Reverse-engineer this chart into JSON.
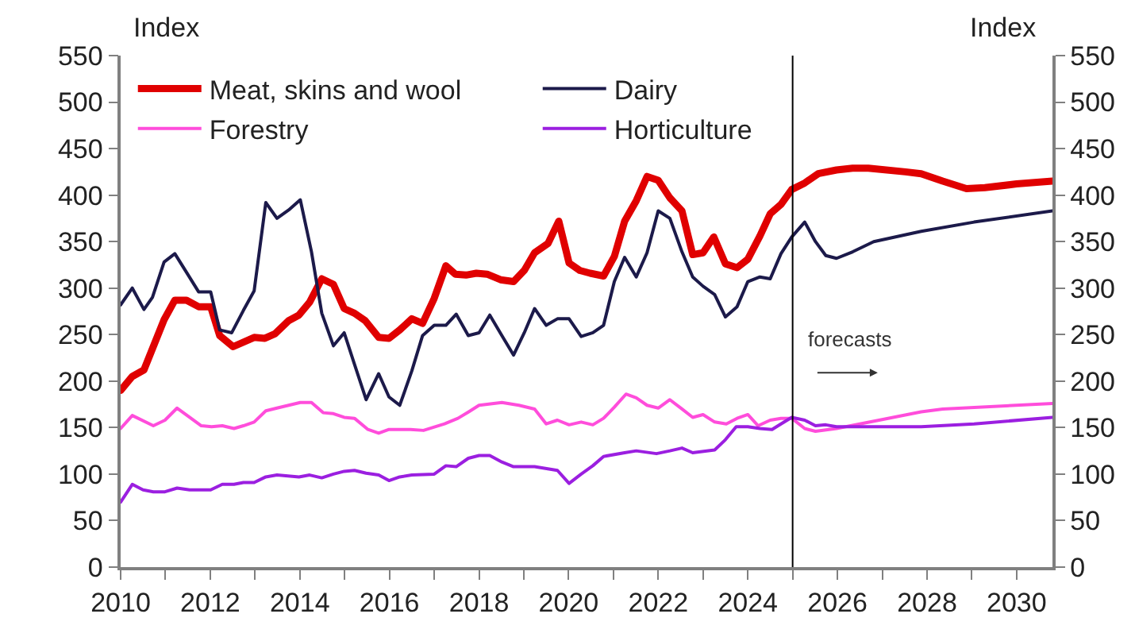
{
  "chart_data": {
    "type": "line",
    "ylabel": "Index",
    "y2label": "Index",
    "xlim": [
      2010,
      2030.8
    ],
    "xticks": [
      2010,
      {
        "value": 2011,
        "label": null
      },
      2012,
      {
        "value": 2013,
        "label": null
      },
      2014,
      {
        "value": 2015,
        "label": null
      },
      2016,
      {
        "value": 2017,
        "label": null
      },
      2018,
      {
        "value": 2019,
        "label": null
      },
      2020,
      {
        "value": 2021,
        "label": null
      },
      2022,
      {
        "value": 2023,
        "label": null
      },
      2024,
      {
        "value": 2025,
        "label": null
      },
      2026,
      {
        "value": 2027,
        "label": null
      },
      2028,
      {
        "value": 2029,
        "label": null
      },
      2030
    ],
    "ylim": [
      0,
      550
    ],
    "yticks": [
      0,
      50,
      100,
      150,
      200,
      250,
      300,
      350,
      400,
      450,
      500,
      550
    ],
    "y2lim": [
      0,
      550
    ],
    "y2ticks": [
      0,
      50,
      100,
      150,
      200,
      250,
      300,
      350,
      400,
      450,
      500,
      550
    ],
    "legend": "top left",
    "marker": "none",
    "line_style": "solid",
    "ref_lines": [
      {
        "axis": "x",
        "value": 2025,
        "label": "forecasts",
        "color": "#000000"
      }
    ],
    "series": [
      {
        "name": "Meat, skins and wool",
        "color": "#e00000",
        "x": [
          2010.0,
          2010.26,
          2010.52,
          2010.97,
          2011.21,
          2011.47,
          2011.74,
          2012.01,
          2012.21,
          2012.51,
          2012.98,
          2013.22,
          2013.45,
          2013.75,
          2013.98,
          2014.22,
          2014.49,
          2014.75,
          2014.99,
          2015.22,
          2015.46,
          2015.76,
          2015.99,
          2016.23,
          2016.5,
          2016.74,
          2017.0,
          2017.26,
          2017.47,
          2017.71,
          2017.94,
          2018.18,
          2018.48,
          2018.77,
          2019.01,
          2019.24,
          2019.54,
          2019.78,
          2020.01,
          2020.25,
          2020.48,
          2020.78,
          2021.02,
          2021.25,
          2021.51,
          2021.75,
          2022.0,
          2022.26,
          2022.53,
          2022.77,
          2023.0,
          2023.24,
          2023.5,
          2023.76,
          2024.0,
          2024.27,
          2024.5,
          2024.74,
          2024.98,
          2025.27,
          2025.57,
          2025.98,
          2026.34,
          2026.69,
          2027.52,
          2027.87,
          2028.35,
          2028.88,
          2029.29,
          2030.0,
          2030.8
        ],
        "values": [
          190,
          205,
          212,
          266,
          287,
          287,
          280,
          280,
          249,
          237,
          247,
          246,
          251,
          265,
          271,
          285,
          310,
          304,
          278,
          273,
          265,
          247,
          246,
          255,
          267,
          262,
          289,
          324,
          315,
          314,
          316,
          315,
          309,
          307,
          319,
          338,
          348,
          372,
          327,
          319,
          316,
          313,
          334,
          372,
          394,
          420,
          416,
          397,
          383,
          336,
          338,
          355,
          326,
          322,
          331,
          356,
          380,
          390,
          406,
          413,
          423,
          427,
          429,
          429,
          425,
          423,
          415,
          407,
          408,
          412,
          415
        ]
      },
      {
        "name": "Dairy",
        "color": "#1c1a4a",
        "x": [
          2010.0,
          2010.26,
          2010.52,
          2010.71,
          2010.97,
          2011.21,
          2011.47,
          2011.74,
          2012.01,
          2012.21,
          2012.48,
          2012.74,
          2012.98,
          2013.24,
          2013.49,
          2013.75,
          2014.01,
          2014.26,
          2014.49,
          2014.75,
          2014.99,
          2015.22,
          2015.48,
          2015.76,
          2015.99,
          2016.23,
          2016.5,
          2016.74,
          2017.0,
          2017.26,
          2017.49,
          2017.76,
          2018.0,
          2018.24,
          2018.51,
          2018.77,
          2019.01,
          2019.24,
          2019.5,
          2019.75,
          2020.01,
          2020.28,
          2020.54,
          2020.78,
          2021.02,
          2021.25,
          2021.51,
          2021.75,
          2022.0,
          2022.26,
          2022.53,
          2022.77,
          2023.0,
          2023.26,
          2023.5,
          2023.76,
          2024.0,
          2024.27,
          2024.5,
          2024.74,
          2024.98,
          2025.27,
          2025.51,
          2025.74,
          2025.98,
          2026.34,
          2026.81,
          2027.87,
          2029.05,
          2030.8
        ],
        "values": [
          282,
          300,
          277,
          290,
          328,
          337,
          317,
          296,
          296,
          255,
          252,
          276,
          297,
          392,
          375,
          384,
          395,
          339,
          273,
          238,
          252,
          218,
          180,
          208,
          183,
          174,
          211,
          249,
          260,
          260,
          272,
          249,
          252,
          271,
          249,
          228,
          252,
          278,
          260,
          267,
          267,
          248,
          252,
          260,
          307,
          333,
          312,
          338,
          383,
          375,
          339,
          312,
          302,
          293,
          269,
          280,
          307,
          312,
          310,
          337,
          355,
          371,
          350,
          335,
          332,
          339,
          350,
          361,
          371,
          383
        ]
      },
      {
        "name": "Forestry",
        "color": "#ff4ddb",
        "x": [
          2010.0,
          2010.26,
          2010.73,
          2010.99,
          2011.26,
          2011.54,
          2011.8,
          2012.03,
          2012.27,
          2012.53,
          2012.74,
          2012.98,
          2013.24,
          2013.49,
          2013.75,
          2014.01,
          2014.26,
          2014.52,
          2014.75,
          2014.99,
          2015.22,
          2015.52,
          2015.76,
          2015.99,
          2016.47,
          2016.76,
          2017.23,
          2017.53,
          2017.77,
          2018.0,
          2018.51,
          2018.89,
          2019.24,
          2019.5,
          2019.75,
          2020.01,
          2020.28,
          2020.54,
          2020.78,
          2021.02,
          2021.28,
          2021.51,
          2021.75,
          2022.0,
          2022.26,
          2022.53,
          2022.77,
          2023.0,
          2023.26,
          2023.52,
          2023.76,
          2024.0,
          2024.23,
          2024.5,
          2024.74,
          2024.98,
          2025.27,
          2025.51,
          2025.98,
          2026.93,
          2027.87,
          2028.35,
          2030.8
        ],
        "values": [
          149,
          163,
          152,
          158,
          171,
          161,
          152,
          151,
          152,
          149,
          152,
          156,
          168,
          171,
          174,
          177,
          177,
          166,
          165,
          161,
          160,
          148,
          144,
          148,
          148,
          147,
          154,
          160,
          167,
          174,
          177,
          174,
          170,
          154,
          158,
          153,
          156,
          153,
          160,
          172,
          186,
          182,
          174,
          171,
          180,
          170,
          161,
          164,
          156,
          154,
          160,
          164,
          152,
          158,
          160,
          160,
          149,
          146,
          149,
          158,
          167,
          170,
          176
        ]
      },
      {
        "name": "Horticulture",
        "color": "#9b1fe0",
        "x": [
          2010.0,
          2010.26,
          2010.5,
          2010.73,
          2010.99,
          2011.26,
          2011.54,
          2012.01,
          2012.27,
          2012.53,
          2012.74,
          2012.98,
          2013.24,
          2013.49,
          2013.98,
          2014.22,
          2014.49,
          2014.75,
          2014.99,
          2015.22,
          2015.48,
          2015.76,
          2015.99,
          2016.23,
          2016.5,
          2017.0,
          2017.26,
          2017.49,
          2017.76,
          2018.0,
          2018.24,
          2018.51,
          2018.77,
          2019.24,
          2019.75,
          2020.01,
          2020.28,
          2020.54,
          2020.78,
          2021.25,
          2021.51,
          2021.96,
          2022.26,
          2022.53,
          2022.77,
          2023.26,
          2023.5,
          2023.74,
          2024.0,
          2024.27,
          2024.54,
          2024.74,
          2024.98,
          2025.27,
          2025.51,
          2025.74,
          2025.98,
          2027.87,
          2029.05,
          2030.8
        ],
        "values": [
          70,
          89,
          83,
          81,
          81,
          85,
          83,
          83,
          89,
          89,
          91,
          91,
          97,
          99,
          97,
          99,
          96,
          100,
          103,
          104,
          101,
          99,
          93,
          97,
          99,
          100,
          109,
          108,
          117,
          120,
          120,
          113,
          108,
          108,
          104,
          90,
          100,
          109,
          119,
          123,
          125,
          122,
          125,
          128,
          123,
          126,
          137,
          151,
          151,
          149,
          148,
          154,
          161,
          158,
          152,
          153,
          151,
          151,
          154,
          161
        ]
      }
    ]
  }
}
